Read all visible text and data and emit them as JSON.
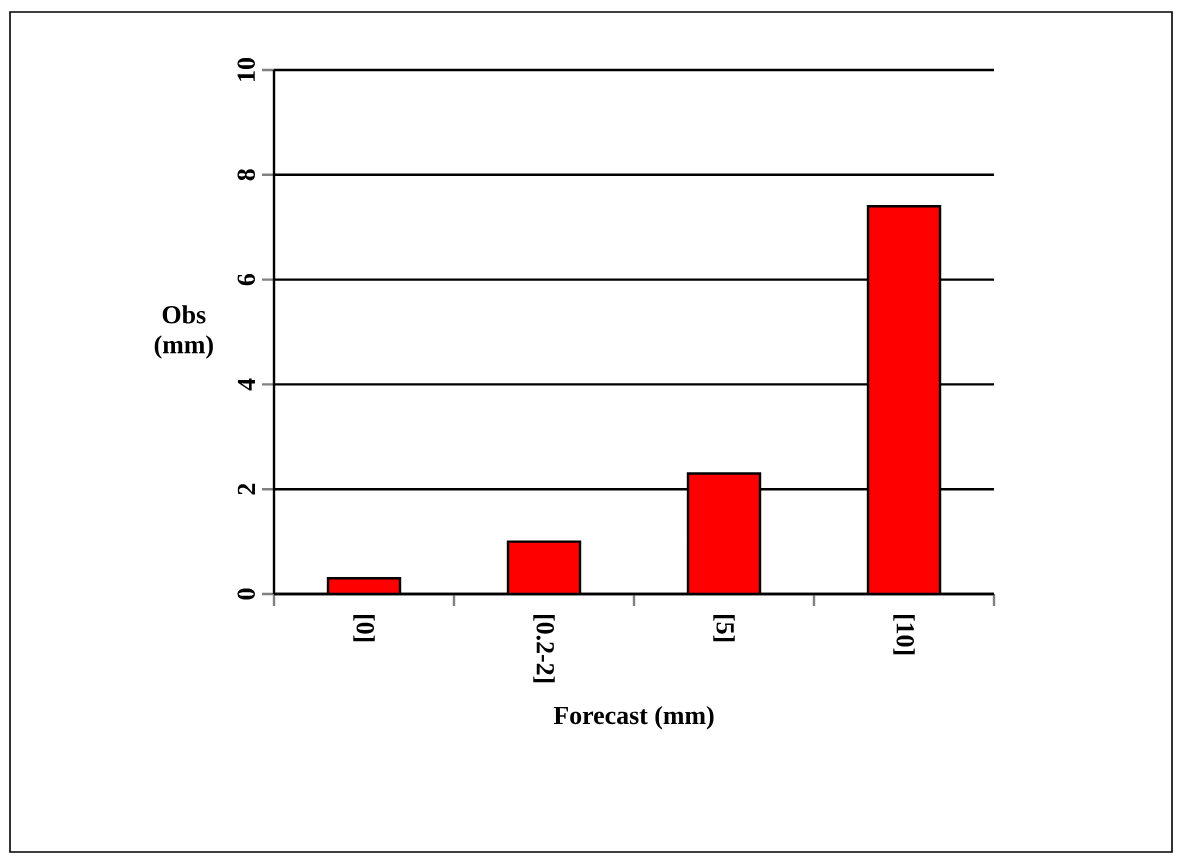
{
  "chart_data": {
    "type": "bar",
    "xlabel": "Forecast (mm)",
    "ylabel": "Obs (mm)",
    "categories": [
      "[0]",
      "[0.2-2]",
      "[5]",
      "[10]"
    ],
    "values": [
      0.3,
      1.0,
      2.3,
      7.4
    ],
    "color": "#ff0000",
    "ylim": [
      0,
      10
    ],
    "yticks": [
      0,
      2,
      4,
      6,
      8,
      10
    ],
    "grid": "y"
  }
}
